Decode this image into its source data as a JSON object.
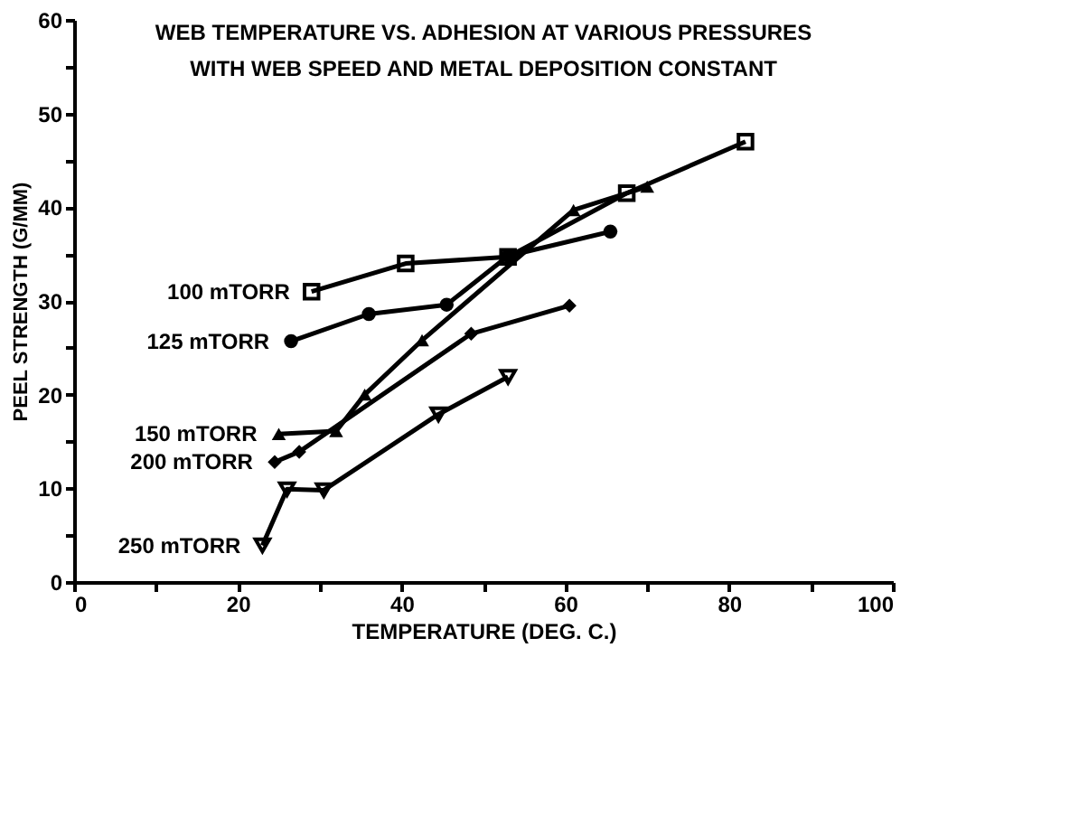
{
  "chart_data": {
    "type": "line",
    "title": "WEB TEMPERATURE VS. ADHESION AT VARIOUS PRESSURES",
    "subtitle": "WITH WEB SPEED AND METAL DEPOSITION CONSTANT",
    "xlabel": "TEMPERATURE (DEG. C.)",
    "ylabel": "PEEL STRENGTH (G/MM)",
    "xlim": [
      0,
      100
    ],
    "ylim": [
      0,
      60
    ],
    "xticks": [
      0,
      {
        "value": 10,
        "label": null
      },
      20,
      {
        "value": 30,
        "label": null
      },
      40,
      {
        "value": 50,
        "label": null
      },
      60,
      {
        "value": 70,
        "label": null
      },
      80,
      {
        "value": 90,
        "label": null
      },
      100
    ],
    "yticks": [
      0,
      {
        "value": 5,
        "label": null
      },
      10,
      {
        "value": 15,
        "label": null
      },
      20,
      {
        "value": 25,
        "label": null
      },
      30,
      {
        "value": 35,
        "label": null
      },
      40,
      {
        "value": 45,
        "label": null
      },
      50,
      {
        "value": 55,
        "label": null
      },
      60
    ],
    "grid": false,
    "legend": false,
    "line_style": "solid",
    "series": [
      {
        "name": "100 mTORR",
        "color": "#000000",
        "marker": "square",
        "x": [
          29,
          40.5,
          53,
          67.5,
          82
        ],
        "values": [
          31,
          34,
          34.7,
          41.5,
          47
        ]
      },
      {
        "name": "125 mTORR",
        "color": "#000000",
        "marker": "circle",
        "x": [
          26.5,
          36,
          45.5,
          53,
          65.5
        ],
        "values": [
          25.7,
          28.6,
          29.6,
          34.8,
          37.4
        ]
      },
      {
        "name": "150 mTORR",
        "color": "#000000",
        "marker": "triangle",
        "x": [
          25,
          32,
          35.5,
          42.5,
          61,
          70
        ],
        "values": [
          15.8,
          16.1,
          20,
          25.8,
          39.7,
          42.2
        ]
      },
      {
        "name": "200 mTORR",
        "color": "#000000",
        "marker": "diamond",
        "x": [
          24.5,
          27.5,
          48.5,
          60.5
        ],
        "values": [
          12.8,
          13.9,
          26.5,
          29.5
        ]
      },
      {
        "name": "250 mTORR",
        "color": "#000000",
        "marker": "triangle-down",
        "x": [
          23,
          26,
          30.5,
          44.5,
          53
        ],
        "values": [
          3.9,
          9.9,
          9.8,
          17.9,
          21.9
        ]
      }
    ]
  }
}
